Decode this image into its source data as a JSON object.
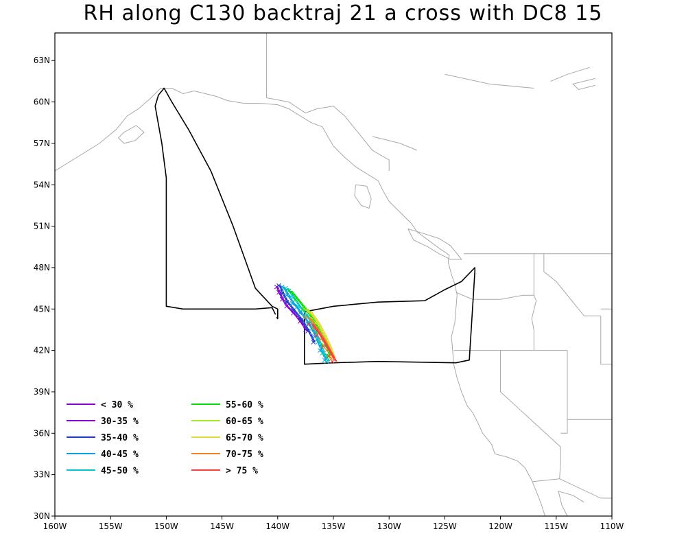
{
  "title": "RH along C130 backtraj 21 a cross with DC8 15",
  "chart_data": {
    "type": "map-trajectory",
    "bounds": {
      "lon": [
        -160,
        -110
      ],
      "lat": [
        30,
        65
      ]
    },
    "x_ticks": [
      {
        "value": -160,
        "label": "160W"
      },
      {
        "value": -155,
        "label": "155W"
      },
      {
        "value": -150,
        "label": "150W"
      },
      {
        "value": -145,
        "label": "145W"
      },
      {
        "value": -140,
        "label": "140W"
      },
      {
        "value": -135,
        "label": "135W"
      },
      {
        "value": -130,
        "label": "130W"
      },
      {
        "value": -125,
        "label": "125W"
      },
      {
        "value": -120,
        "label": "120W"
      },
      {
        "value": -115,
        "label": "115W"
      },
      {
        "value": -110,
        "label": "110W"
      }
    ],
    "y_ticks": [
      {
        "value": 30,
        "label": "30N"
      },
      {
        "value": 33,
        "label": "33N"
      },
      {
        "value": 36,
        "label": "36N"
      },
      {
        "value": 39,
        "label": "39N"
      },
      {
        "value": 42,
        "label": "42N"
      },
      {
        "value": 45,
        "label": "45N"
      },
      {
        "value": 48,
        "label": "48N"
      },
      {
        "value": 51,
        "label": "51N"
      },
      {
        "value": 54,
        "label": "54N"
      },
      {
        "value": 57,
        "label": "57N"
      },
      {
        "value": 60,
        "label": "60N"
      },
      {
        "value": 63,
        "label": "63N"
      }
    ],
    "legend": [
      {
        "label": "< 30 %",
        "color": "#8a00d4"
      },
      {
        "label": "30-35 %",
        "color": "#8a00d4"
      },
      {
        "label": "35-40 %",
        "color": "#1e3cc8"
      },
      {
        "label": "40-45 %",
        "color": "#0aa0e6"
      },
      {
        "label": "45-50 %",
        "color": "#00c8c8"
      },
      {
        "label": "55-60 %",
        "color": "#00dc00"
      },
      {
        "label": "60-65 %",
        "color": "#a0e632"
      },
      {
        "label": "65-70 %",
        "color": "#e6dc32"
      },
      {
        "label": "70-75 %",
        "color": "#f08228"
      },
      {
        "label": "> 75 %",
        "color": "#fa3c3c"
      }
    ],
    "flight_track": [
      [
        -140.1,
        44.4
      ],
      [
        -140.0,
        44.3
      ],
      [
        -140.0,
        45.0
      ],
      [
        -140.5,
        45.2
      ],
      [
        -142.0,
        46.5
      ],
      [
        -144.0,
        51.0
      ],
      [
        -146.0,
        55.0
      ],
      [
        -148.0,
        58.0
      ],
      [
        -149.5,
        60.0
      ],
      [
        -150.2,
        61.0
      ],
      [
        -150.7,
        60.5
      ],
      [
        -151.0,
        59.7
      ],
      [
        -150.4,
        57.0
      ],
      [
        -150.0,
        54.5
      ],
      [
        -150.0,
        45.2
      ],
      [
        -148.5,
        45.0
      ],
      [
        -142.0,
        45.0
      ],
      [
        -140.5,
        45.1
      ],
      [
        -140.2,
        44.6
      ],
      null,
      [
        -137.6,
        44.8
      ],
      [
        -137.6,
        41.0
      ],
      [
        -135.0,
        41.1
      ],
      [
        -131.0,
        41.2
      ],
      [
        -124.0,
        41.1
      ],
      [
        -122.8,
        41.3
      ],
      [
        -122.3,
        47.7
      ],
      [
        -122.3,
        48.0
      ],
      [
        -123.5,
        47.0
      ],
      [
        -125.0,
        46.4
      ],
      [
        -126.8,
        45.6
      ],
      [
        -131.0,
        45.5
      ],
      [
        -135.0,
        45.2
      ],
      [
        -137.6,
        44.8
      ]
    ],
    "rh_series": [
      {
        "color": "#8a00d4",
        "dx": 0.0,
        "points": [
          [
            -140.1,
            46.6
          ],
          [
            -139.9,
            46.2
          ],
          [
            -139.6,
            45.7
          ],
          [
            -139.2,
            45.2
          ],
          [
            -138.6,
            44.7
          ],
          [
            -138.0,
            44.1
          ],
          [
            -137.5,
            43.5
          ]
        ]
      },
      {
        "color": "#1e3cc8",
        "dx": 0.15,
        "points": [
          [
            -139.9,
            46.7
          ],
          [
            -139.6,
            46.1
          ],
          [
            -139.2,
            45.5
          ],
          [
            -138.6,
            44.9
          ],
          [
            -137.9,
            44.2
          ],
          [
            -137.3,
            43.4
          ],
          [
            -136.8,
            42.6
          ]
        ]
      },
      {
        "color": "#0aa0e6",
        "dx": 0.3,
        "points": [
          [
            -139.6,
            46.6
          ],
          [
            -139.2,
            46.0
          ],
          [
            -138.7,
            45.4
          ],
          [
            -138.0,
            44.7
          ],
          [
            -137.3,
            43.9
          ],
          [
            -136.7,
            43.0
          ],
          [
            -136.2,
            42.0
          ],
          [
            -135.8,
            41.3
          ]
        ]
      },
      {
        "color": "#00c8c8",
        "dx": 0.45,
        "points": [
          [
            -139.3,
            46.5
          ],
          [
            -138.8,
            45.9
          ],
          [
            -138.2,
            45.2
          ],
          [
            -137.5,
            44.5
          ],
          [
            -136.9,
            43.6
          ],
          [
            -136.4,
            42.6
          ],
          [
            -136.0,
            41.8
          ],
          [
            -135.6,
            41.2
          ]
        ]
      },
      {
        "color": "#00dc00",
        "dx": 0.55,
        "points": [
          [
            -139.0,
            46.3
          ],
          [
            -138.4,
            45.7
          ],
          [
            -137.7,
            45.0
          ],
          [
            -137.0,
            44.2
          ],
          [
            -136.4,
            43.3
          ],
          [
            -135.9,
            42.4
          ],
          [
            -135.5,
            41.6
          ]
        ]
      },
      {
        "color": "#a0e632",
        "dx": 0.65,
        "points": [
          [
            -137.6,
            45.0
          ],
          [
            -136.9,
            44.3
          ],
          [
            -136.3,
            43.4
          ],
          [
            -135.8,
            42.5
          ],
          [
            -135.4,
            41.6
          ]
        ]
      },
      {
        "color": "#e6dc32",
        "dx": 0.75,
        "points": [
          [
            -137.3,
            44.8
          ],
          [
            -136.6,
            44.0
          ],
          [
            -136.0,
            43.1
          ],
          [
            -135.5,
            42.2
          ],
          [
            -135.2,
            41.5
          ]
        ]
      },
      {
        "color": "#f08228",
        "dx": 0.85,
        "points": [
          [
            -137.5,
            44.4
          ],
          [
            -136.8,
            43.6
          ],
          [
            -136.1,
            42.8
          ],
          [
            -135.6,
            42.0
          ],
          [
            -135.2,
            41.4
          ]
        ]
      },
      {
        "color": "#fa3c3c",
        "dx": 0.95,
        "points": [
          [
            -137.2,
            43.9
          ],
          [
            -136.5,
            43.1
          ],
          [
            -135.9,
            42.3
          ],
          [
            -135.4,
            41.6
          ],
          [
            -135.1,
            41.2
          ]
        ]
      }
    ],
    "coastline": [
      [
        [
          -160,
          55.0
        ],
        [
          -158.0,
          56.0
        ],
        [
          -156.0,
          57.0
        ],
        [
          -154.5,
          58.0
        ],
        [
          -153.5,
          59.0
        ],
        [
          -152.5,
          59.5
        ],
        [
          -151.5,
          60.2
        ],
        [
          -150.5,
          61.0
        ],
        [
          -149.5,
          61.0
        ],
        [
          -148.5,
          60.6
        ],
        [
          -147.5,
          60.8
        ],
        [
          -146.5,
          60.6
        ],
        [
          -145.5,
          60.4
        ],
        [
          -144.5,
          60.1
        ],
        [
          -143.0,
          59.9
        ],
        [
          -141.5,
          59.9
        ],
        [
          -140.0,
          59.8
        ],
        [
          -139.0,
          59.5
        ],
        [
          -138.0,
          59.0
        ],
        [
          -137.0,
          58.5
        ],
        [
          -136.0,
          58.2
        ],
        [
          -135.5,
          57.5
        ],
        [
          -135.0,
          56.8
        ],
        [
          -134.0,
          56.0
        ],
        [
          -133.0,
          55.3
        ],
        [
          -132.0,
          54.8
        ],
        [
          -131.0,
          54.3
        ],
        [
          -130.5,
          53.5
        ],
        [
          -130.0,
          52.8
        ],
        [
          -129.0,
          52.0
        ],
        [
          -128.0,
          51.2
        ],
        [
          -127.5,
          50.6
        ],
        [
          -126.5,
          50.0
        ],
        [
          -125.5,
          49.4
        ],
        [
          -124.6,
          48.9
        ],
        [
          -124.7,
          48.4
        ],
        [
          -124.4,
          47.5
        ],
        [
          -124.1,
          46.8
        ],
        [
          -123.9,
          46.0
        ],
        [
          -124.0,
          45.0
        ],
        [
          -124.1,
          44.0
        ],
        [
          -124.4,
          43.0
        ],
        [
          -124.3,
          42.0
        ],
        [
          -124.2,
          41.0
        ],
        [
          -123.9,
          40.0
        ],
        [
          -123.5,
          39.0
        ],
        [
          -123.0,
          38.0
        ],
        [
          -122.5,
          37.5
        ],
        [
          -122.0,
          36.7
        ],
        [
          -121.6,
          36.0
        ],
        [
          -120.8,
          35.2
        ],
        [
          -120.5,
          34.5
        ],
        [
          -119.5,
          34.3
        ],
        [
          -118.5,
          34.0
        ],
        [
          -117.8,
          33.5
        ],
        [
          -117.2,
          32.6
        ],
        [
          -116.8,
          31.8
        ],
        [
          -116.4,
          31.0
        ],
        [
          -116.0,
          30.0
        ]
      ],
      [
        [
          -153.8,
          57.8
        ],
        [
          -152.7,
          58.3
        ],
        [
          -152.0,
          57.8
        ],
        [
          -152.8,
          57.2
        ],
        [
          -153.8,
          57.0
        ],
        [
          -154.3,
          57.4
        ],
        [
          -153.8,
          57.8
        ]
      ],
      [
        [
          -133.0,
          54.0
        ],
        [
          -132.0,
          53.9
        ],
        [
          -131.6,
          53.0
        ],
        [
          -131.8,
          52.3
        ],
        [
          -132.5,
          52.5
        ],
        [
          -133.1,
          53.2
        ],
        [
          -133.0,
          54.0
        ]
      ],
      [
        [
          -128.3,
          50.8
        ],
        [
          -127.0,
          50.5
        ],
        [
          -125.5,
          50.1
        ],
        [
          -124.5,
          49.6
        ],
        [
          -123.5,
          48.6
        ],
        [
          -124.5,
          48.6
        ],
        [
          -125.5,
          49.0
        ],
        [
          -126.5,
          49.5
        ],
        [
          -127.8,
          50.0
        ],
        [
          -128.3,
          50.8
        ]
      ],
      [
        [
          -112.5,
          31.0
        ],
        [
          -113.5,
          31.5
        ],
        [
          -114.8,
          31.8
        ],
        [
          -114.5,
          30.8
        ],
        [
          -114.0,
          30.0
        ]
      ],
      [
        [
          -131.5,
          57.5
        ],
        [
          -129.0,
          57.0
        ],
        [
          -127.5,
          56.5
        ]
      ],
      [
        [
          -125.0,
          62.0
        ],
        [
          -121.0,
          61.3
        ],
        [
          -117.0,
          61.0
        ]
      ],
      [
        [
          -112.0,
          62.5
        ],
        [
          -114.0,
          62.0
        ],
        [
          -115.5,
          61.5
        ]
      ],
      [
        [
          -111.5,
          61.7
        ],
        [
          -113.5,
          61.3
        ],
        [
          -113.0,
          60.9
        ],
        [
          -111.5,
          61.2
        ]
      ]
    ],
    "borders": [
      [
        [
          -141.0,
          65.0
        ],
        [
          -141.0,
          60.3
        ],
        [
          -139.0,
          60.0
        ],
        [
          -137.5,
          59.2
        ],
        [
          -136.5,
          59.5
        ],
        [
          -135.0,
          59.7
        ],
        [
          -134.0,
          59.0
        ],
        [
          -133.0,
          58.0
        ],
        [
          -131.5,
          56.5
        ],
        [
          -130.0,
          55.8
        ],
        [
          -130.0,
          55.0
        ]
      ],
      [
        [
          -123.3,
          49.0
        ],
        [
          -110.0,
          49.0
        ]
      ],
      [
        [
          -117.0,
          49.0
        ],
        [
          -117.0,
          46.0
        ],
        [
          -116.8,
          45.6
        ],
        [
          -117.2,
          44.3
        ],
        [
          -117.0,
          43.5
        ],
        [
          -117.0,
          42.0
        ]
      ],
      [
        [
          -124.2,
          42.0
        ],
        [
          -114.0,
          42.0
        ]
      ],
      [
        [
          -124.0,
          46.2
        ],
        [
          -122.5,
          45.7
        ],
        [
          -120.0,
          45.7
        ],
        [
          -118.0,
          46.0
        ],
        [
          -117.0,
          46.0
        ]
      ],
      [
        [
          -120.0,
          42.0
        ],
        [
          -120.0,
          39.0
        ],
        [
          -114.6,
          35.0
        ],
        [
          -114.6,
          34.0
        ],
        [
          -114.7,
          32.7
        ]
      ],
      [
        [
          -114.6,
          36.0
        ],
        [
          -114.0,
          36.0
        ],
        [
          -114.0,
          42.0
        ]
      ],
      [
        [
          -117.1,
          32.5
        ],
        [
          -114.7,
          32.7
        ],
        [
          -111.0,
          31.3
        ],
        [
          -110.0,
          31.3
        ]
      ],
      [
        [
          -116.1,
          49.0
        ],
        [
          -116.1,
          47.7
        ],
        [
          -115.0,
          47.0
        ],
        [
          -114.5,
          46.5
        ],
        [
          -113.5,
          45.5
        ],
        [
          -112.5,
          44.5
        ],
        [
          -111.0,
          44.5
        ]
      ],
      [
        [
          -111.0,
          45.0
        ],
        [
          -110.0,
          45.0
        ]
      ],
      [
        [
          -111.0,
          44.5
        ],
        [
          -111.0,
          41.0
        ],
        [
          -110.0,
          41.0
        ]
      ],
      [
        [
          -114.0,
          37.0
        ],
        [
          -110.0,
          37.0
        ]
      ]
    ]
  }
}
